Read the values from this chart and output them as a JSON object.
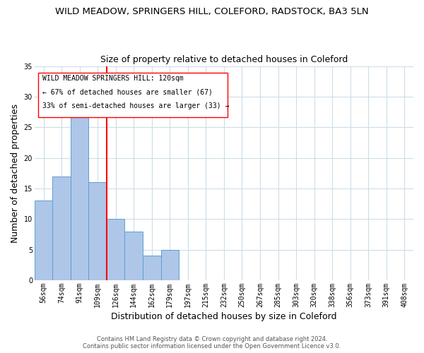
{
  "title": "WILD MEADOW, SPRINGERS HILL, COLEFORD, RADSTOCK, BA3 5LN",
  "subtitle": "Size of property relative to detached houses in Coleford",
  "xlabel": "Distribution of detached houses by size in Coleford",
  "ylabel": "Number of detached properties",
  "categories": [
    "56sqm",
    "74sqm",
    "91sqm",
    "109sqm",
    "126sqm",
    "144sqm",
    "162sqm",
    "179sqm",
    "197sqm",
    "215sqm",
    "232sqm",
    "250sqm",
    "267sqm",
    "285sqm",
    "303sqm",
    "320sqm",
    "338sqm",
    "356sqm",
    "373sqm",
    "391sqm",
    "408sqm"
  ],
  "values": [
    13,
    17,
    27,
    16,
    10,
    8,
    4,
    5,
    0,
    0,
    0,
    0,
    0,
    0,
    0,
    0,
    0,
    0,
    0,
    0,
    0
  ],
  "bar_color": "#aec6e8",
  "bar_edge_color": "#5a9fd4",
  "vline_color": "red",
  "ylim": [
    0,
    35
  ],
  "yticks": [
    0,
    5,
    10,
    15,
    20,
    25,
    30,
    35
  ],
  "annotation_title": "WILD MEADOW SPRINGERS HILL: 120sqm",
  "annotation_line1": "← 67% of detached houses are smaller (67)",
  "annotation_line2": "33% of semi-detached houses are larger (33) →",
  "footer_line1": "Contains HM Land Registry data © Crown copyright and database right 2024.",
  "footer_line2": "Contains public sector information licensed under the Open Government Licence v3.0.",
  "title_fontsize": 9.5,
  "subtitle_fontsize": 9,
  "tick_fontsize": 7,
  "ylabel_fontsize": 9,
  "xlabel_fontsize": 9,
  "annotation_fontsize": 7,
  "footer_fontsize": 6
}
